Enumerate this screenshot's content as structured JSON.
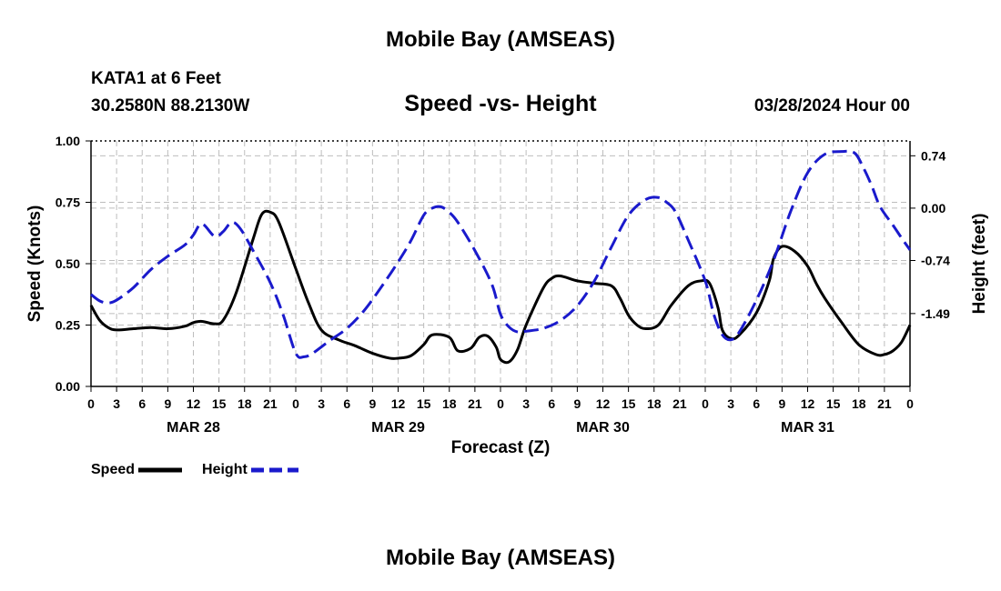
{
  "page": {
    "title": "Mobile Bay (AMSEAS)",
    "footer_title": "Mobile Bay (AMSEAS)",
    "station": "KATA1 at 6 Feet",
    "coordinates": "30.2580N  88.2130W",
    "subtitle": "Speed -vs- Height",
    "datetime": "03/28/2024 Hour 00"
  },
  "legend": {
    "speed_label": "Speed",
    "height_label": "Height"
  },
  "colors": {
    "speed": "#000000",
    "height": "#1a1acc",
    "grid": "#bdbdbd"
  },
  "chart_data": {
    "type": "line",
    "title": "Speed -vs- Height",
    "xlabel": "Forecast (Z)",
    "ylabel": "Speed (Knots)",
    "y2label": "Height (feet)",
    "x_range_hours": [
      0,
      96
    ],
    "x_tick_step_hours": 3,
    "x_tick_labels": [
      "0",
      "3",
      "6",
      "9",
      "12",
      "15",
      "18",
      "21",
      "0",
      "3",
      "6",
      "9",
      "12",
      "15",
      "18",
      "21",
      "0",
      "3",
      "6",
      "9",
      "12",
      "15",
      "18",
      "21",
      "0",
      "3",
      "6",
      "9",
      "12",
      "15",
      "18",
      "21",
      "0"
    ],
    "day_labels": [
      {
        "label": "MAR 28",
        "hour": 12
      },
      {
        "label": "MAR 29",
        "hour": 36
      },
      {
        "label": "MAR 30",
        "hour": 60
      },
      {
        "label": "MAR 31",
        "hour": 84
      }
    ],
    "ylim": [
      0,
      1.0
    ],
    "y_ticks": [
      "0.00",
      "0.25",
      "0.50",
      "0.75",
      "1.00"
    ],
    "y_tick_values": [
      0,
      0.25,
      0.5,
      0.75,
      1.0
    ],
    "y2lim": [
      -2.52,
      0.95
    ],
    "y2_ticks": [
      "-1.49",
      "-0.74",
      "0.00",
      "0.74"
    ],
    "y2_tick_values": [
      -1.49,
      -0.74,
      0.0,
      0.74
    ],
    "grid": true,
    "series": [
      {
        "name": "Speed",
        "axis": "left",
        "style": "solid",
        "x": [
          0,
          1,
          2,
          3,
          5,
          7,
          9,
          11,
          12,
          13,
          14.5,
          15.5,
          17,
          19,
          20,
          21,
          22,
          24,
          25.5,
          27,
          29,
          31,
          33,
          35,
          36,
          37.5,
          39,
          40,
          42,
          43,
          44.5,
          45.5,
          46.5,
          47.5,
          48,
          49,
          50,
          51,
          53,
          54,
          55,
          57,
          59,
          61,
          62,
          63,
          64,
          65,
          66.5,
          68,
          70,
          71.5,
          72.5,
          73.5,
          74,
          75,
          76,
          78,
          79.5,
          80,
          81,
          82.5,
          84,
          85,
          86,
          88,
          90,
          92,
          93,
          94,
          95,
          96
        ],
        "values": [
          0.33,
          0.27,
          0.24,
          0.23,
          0.235,
          0.24,
          0.235,
          0.245,
          0.26,
          0.265,
          0.255,
          0.27,
          0.38,
          0.6,
          0.7,
          0.71,
          0.67,
          0.48,
          0.34,
          0.23,
          0.19,
          0.165,
          0.135,
          0.115,
          0.115,
          0.125,
          0.17,
          0.21,
          0.2,
          0.145,
          0.155,
          0.2,
          0.205,
          0.16,
          0.11,
          0.1,
          0.15,
          0.25,
          0.4,
          0.44,
          0.45,
          0.43,
          0.42,
          0.41,
          0.36,
          0.29,
          0.25,
          0.235,
          0.25,
          0.33,
          0.41,
          0.43,
          0.42,
          0.32,
          0.23,
          0.195,
          0.21,
          0.3,
          0.43,
          0.52,
          0.57,
          0.55,
          0.49,
          0.42,
          0.36,
          0.26,
          0.17,
          0.13,
          0.13,
          0.145,
          0.18,
          0.25
        ]
      },
      {
        "name": "Height",
        "axis": "right",
        "style": "dashed",
        "x": [
          0,
          1,
          2,
          3,
          5,
          7,
          9,
          11,
          12,
          13,
          14.5,
          15.5,
          16.5,
          17.5,
          19,
          21,
          22.5,
          24,
          25,
          26,
          28,
          30,
          32,
          34,
          36,
          37.5,
          39,
          40,
          41,
          42,
          43,
          45,
          47,
          48,
          49,
          50,
          51,
          53,
          55,
          57,
          59,
          61,
          63,
          65,
          66.5,
          67.5,
          68.5,
          70,
          72,
          73,
          74,
          75,
          76,
          78,
          80,
          82,
          84,
          86,
          88,
          89.5,
          90.5,
          91.5,
          92.5,
          94,
          95,
          96
        ],
        "values": [
          -1.22,
          -1.31,
          -1.34,
          -1.3,
          -1.12,
          -0.87,
          -0.68,
          -0.52,
          -0.38,
          -0.22,
          -0.4,
          -0.33,
          -0.2,
          -0.29,
          -0.6,
          -1.05,
          -1.5,
          -2.05,
          -2.1,
          -2.05,
          -1.87,
          -1.7,
          -1.45,
          -1.12,
          -0.76,
          -0.46,
          -0.1,
          0.0,
          0.02,
          -0.06,
          -0.2,
          -0.6,
          -1.08,
          -1.5,
          -1.68,
          -1.75,
          -1.74,
          -1.7,
          -1.59,
          -1.38,
          -1.03,
          -0.55,
          -0.1,
          0.12,
          0.15,
          0.08,
          -0.05,
          -0.45,
          -1.03,
          -1.5,
          -1.79,
          -1.86,
          -1.75,
          -1.3,
          -0.74,
          -0.05,
          0.5,
          0.76,
          0.8,
          0.78,
          0.58,
          0.32,
          0.02,
          -0.24,
          -0.42,
          -0.59
        ]
      }
    ]
  }
}
